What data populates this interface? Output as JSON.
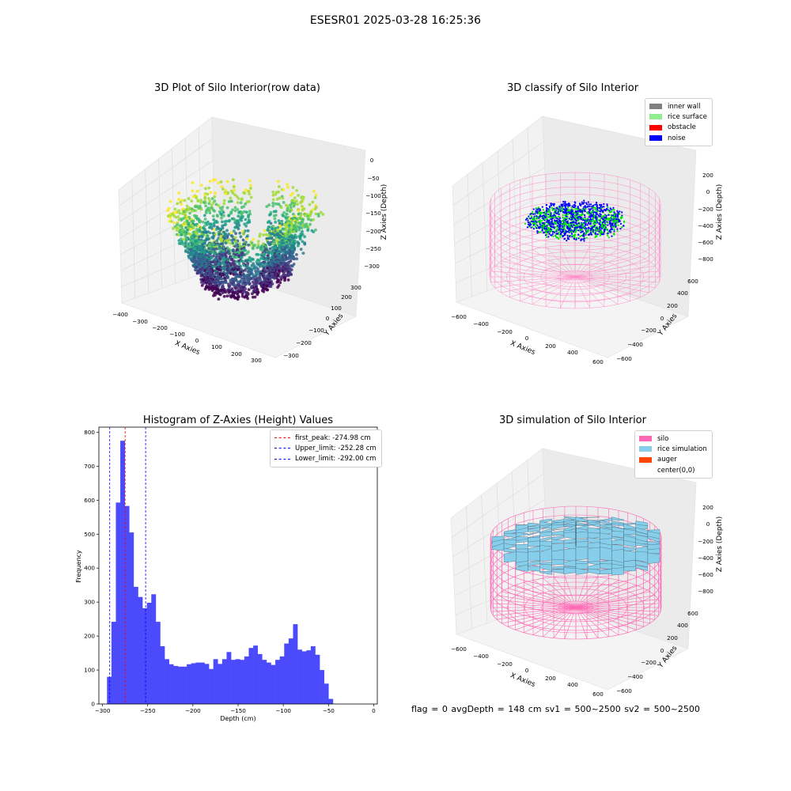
{
  "suptitle": "ESESR01 2025-03-28 16:25:36",
  "footer": "flag = 0     avgDepth = 148 cm  sv1 = 500~2500  sv2 = 500~2500",
  "colors": {
    "histogram_bar": "#4b4bfb",
    "silo_wire": "#ff8cc8",
    "inner_wall": "#808080",
    "rice_surface": "#90ee90",
    "obstacle": "#ff0000",
    "noise": "#0000ff",
    "silo": "#ff69b4",
    "rice_simulation": "#87ceeb",
    "auger": "#ff4500"
  },
  "chart_data": [
    {
      "type": "scatter",
      "title": "3D Plot of Silo Interior(row data)",
      "xlabel": "X Axies",
      "ylabel": "Y Axies",
      "zlabel": "Z Axies (Depth)",
      "x_ticks": [
        "−400",
        "−300",
        "−200",
        "−100",
        "0",
        "100",
        "200",
        "300"
      ],
      "y_ticks": [
        "−300",
        "−200",
        "−100",
        "0",
        "100",
        "200",
        "300"
      ],
      "z_ticks": [
        "0",
        "−50",
        "−100",
        "−150",
        "−200",
        "−250",
        "−300"
      ],
      "colormap": "viridis"
    },
    {
      "type": "scatter",
      "title": "3D classify of Silo Interior",
      "xlabel": "X Axies",
      "ylabel": "Y Axies",
      "zlabel": "Z Axies (Depth)",
      "x_ticks": [
        "−600",
        "−400",
        "−200",
        "0",
        "200",
        "400",
        "600"
      ],
      "y_ticks": [
        "−600",
        "−400",
        "−200",
        "0",
        "200",
        "400",
        "600"
      ],
      "z_ticks": [
        "200",
        "0",
        "−200",
        "−400",
        "−600",
        "−800"
      ],
      "legend": [
        "inner wall",
        "rice surface",
        "obstacle",
        "noise"
      ]
    },
    {
      "type": "bar",
      "title": "Histogram of Z-Axies (Height) Values",
      "xlabel": "Depth (cm)",
      "ylabel": "Frequency",
      "xlim": [
        -304,
        4
      ],
      "ylim": [
        0,
        815
      ],
      "x_ticks": [
        -300,
        -250,
        -200,
        -150,
        -100,
        -50,
        0
      ],
      "x_tick_labels": [
        "−300",
        "−250",
        "−200",
        "−150",
        "−100",
        "−50",
        "0"
      ],
      "y_ticks": [
        0,
        100,
        200,
        300,
        400,
        500,
        600,
        700,
        800
      ],
      "bin_start": -295,
      "bin_width": 4.9,
      "values": [
        80,
        242,
        593,
        775,
        583,
        505,
        345,
        315,
        282,
        298,
        323,
        242,
        170,
        132,
        117,
        112,
        110,
        110,
        117,
        120,
        122,
        122,
        118,
        103,
        132,
        118,
        132,
        153,
        130,
        132,
        130,
        140,
        165,
        172,
        147,
        130,
        122,
        115,
        130,
        140,
        178,
        193,
        235,
        160,
        155,
        158,
        170,
        145,
        100,
        60,
        15
      ],
      "reference_lines": [
        {
          "label": "first_peak: -274.98 cm",
          "x": -274.98,
          "color": "#ff0000"
        },
        {
          "label": "Upper_limit: -252.28 cm",
          "x": -252.28,
          "color": "#0000ff"
        },
        {
          "label": "Lower_limit: -292.00 cm",
          "x": -292.0,
          "color": "#0000ff"
        }
      ]
    },
    {
      "type": "area",
      "title": "3D simulation of Silo Interior",
      "xlabel": "X Axies",
      "ylabel": "Y Axies",
      "zlabel": "Z Axies (Depth)",
      "x_ticks": [
        "−600",
        "−400",
        "−200",
        "0",
        "200",
        "400",
        "600"
      ],
      "y_ticks": [
        "−600",
        "−400",
        "−200",
        "0",
        "200",
        "400",
        "600"
      ],
      "z_ticks": [
        "200",
        "0",
        "−200",
        "−400",
        "−600",
        "−800"
      ],
      "legend": [
        "silo",
        "rice simulation",
        "auger",
        "center(0,0)"
      ]
    }
  ]
}
